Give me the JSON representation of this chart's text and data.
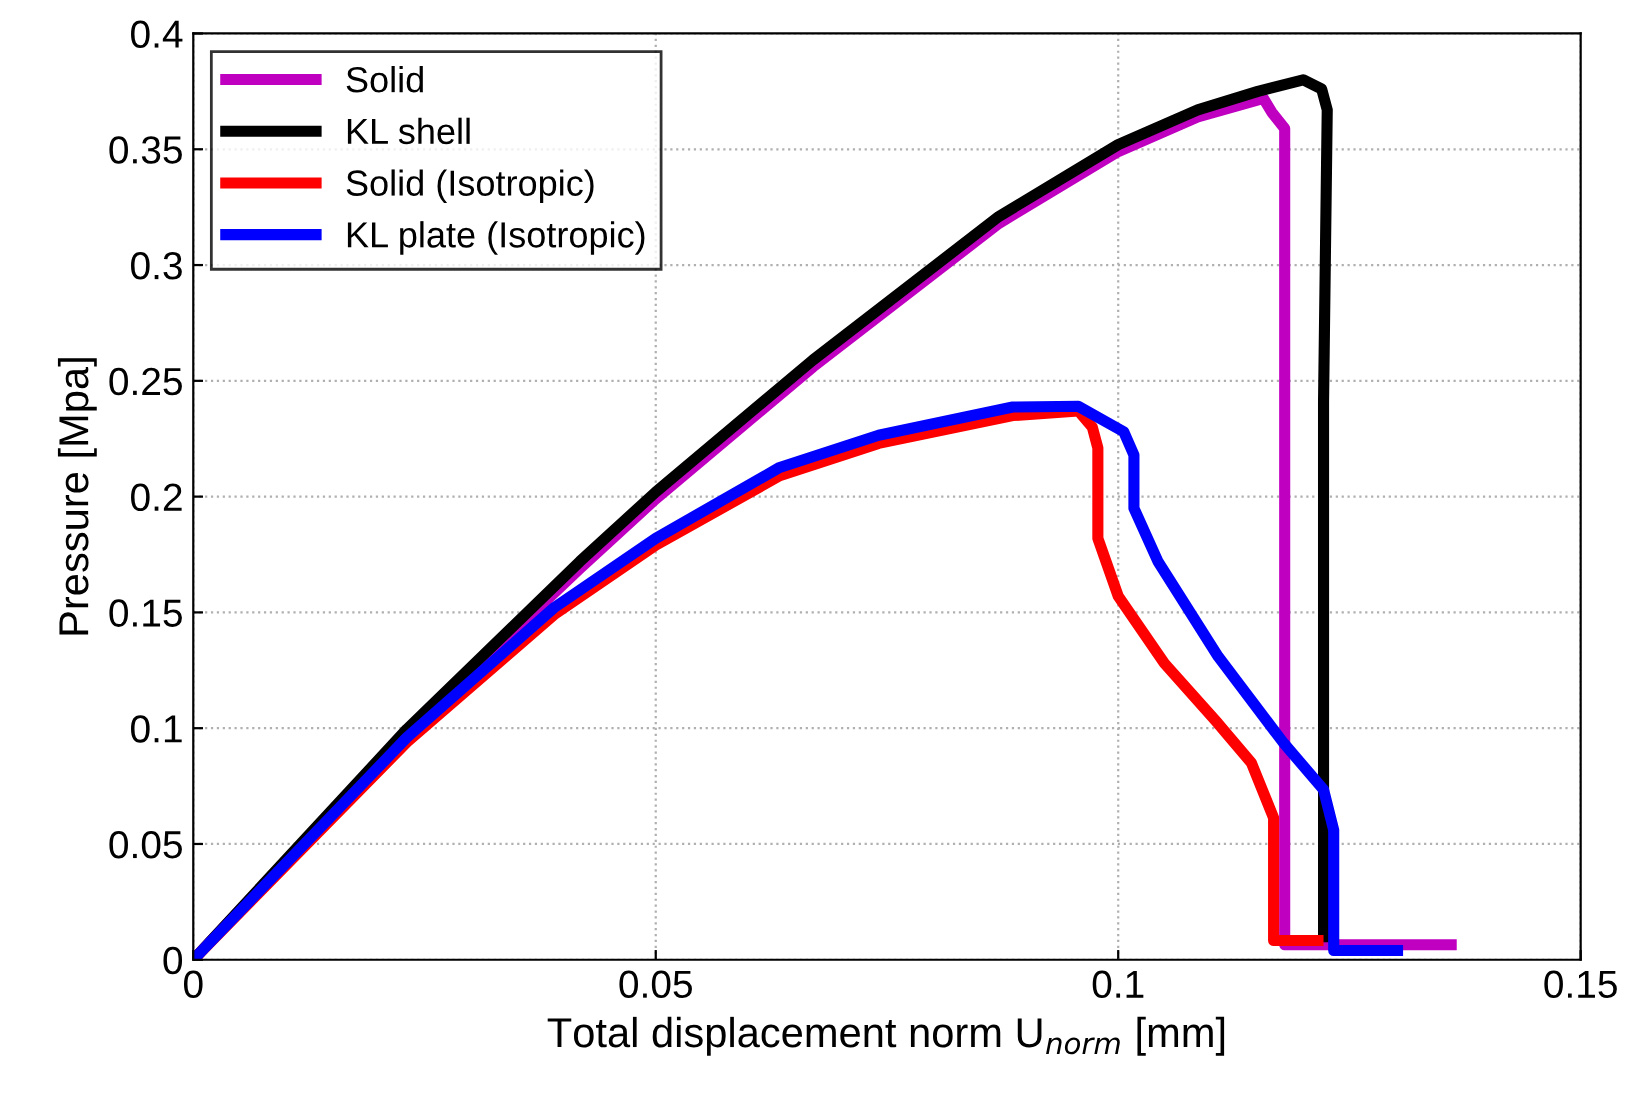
{
  "chart_data": {
    "type": "line",
    "xlabel": "Total displacement norm U$_{norm}$ [mm]",
    "ylabel": "Pressure [Mpa]",
    "xlim": [
      0,
      0.15
    ],
    "ylim": [
      0,
      0.4
    ],
    "xticks": [
      0,
      0.05,
      0.1,
      0.15
    ],
    "yticks": [
      0,
      0.05,
      0.1,
      0.15,
      0.2,
      0.25,
      0.3,
      0.35,
      0.4
    ],
    "grid": true,
    "legend": "top left",
    "marker": "none",
    "line_style": "solid",
    "series": [
      {
        "name": "Solid",
        "color": "#c000c0",
        "x": [
          0,
          0.0231,
          0.0418,
          0.05,
          0.067,
          0.0871,
          0.1,
          0.1086,
          0.1157,
          0.1166,
          0.118,
          0.118,
          0.136
        ],
        "values": [
          0,
          0.098,
          0.169,
          0.199,
          0.256,
          0.318,
          0.349,
          0.364,
          0.372,
          0.366,
          0.359,
          0.0065,
          0.0065
        ]
      },
      {
        "name": "KL shell",
        "color": "#000000",
        "x": [
          0,
          0.0231,
          0.0418,
          0.05,
          0.067,
          0.0871,
          0.1,
          0.1086,
          0.1151,
          0.12,
          0.122,
          0.1226,
          0.1222,
          0.1222
        ],
        "values": [
          0,
          0.0996,
          0.172,
          0.202,
          0.259,
          0.321,
          0.352,
          0.367,
          0.375,
          0.38,
          0.376,
          0.367,
          0.241,
          0.01
        ]
      },
      {
        "name": "Solid (Isotropic)",
        "color": "#ff0000",
        "x": [
          0,
          0.0231,
          0.039,
          0.05,
          0.0634,
          0.0741,
          0.0886,
          0.0957,
          0.0972,
          0.0978,
          0.0978,
          0.1,
          0.105,
          0.1108,
          0.1144,
          0.1168,
          0.1168,
          0.1216
        ],
        "values": [
          0,
          0.094,
          0.149,
          0.179,
          0.209,
          0.223,
          0.235,
          0.237,
          0.23,
          0.221,
          0.182,
          0.157,
          0.128,
          0.102,
          0.085,
          0.0613,
          0.0083,
          0.0083
        ]
      },
      {
        "name": "KL plate (Isotropic)",
        "color": "#0000ff",
        "x": [
          0,
          0.0231,
          0.039,
          0.05,
          0.0634,
          0.0741,
          0.0886,
          0.0957,
          0.1006,
          0.1017,
          0.1017,
          0.1043,
          0.1108,
          0.1179,
          0.1222,
          0.1233,
          0.1233,
          0.1302
        ],
        "values": [
          0,
          0.096,
          0.152,
          0.182,
          0.2126,
          0.2265,
          0.2387,
          0.239,
          0.228,
          0.218,
          0.195,
          0.172,
          0.131,
          0.0935,
          0.0735,
          0.056,
          0.004,
          0.004
        ]
      }
    ]
  }
}
